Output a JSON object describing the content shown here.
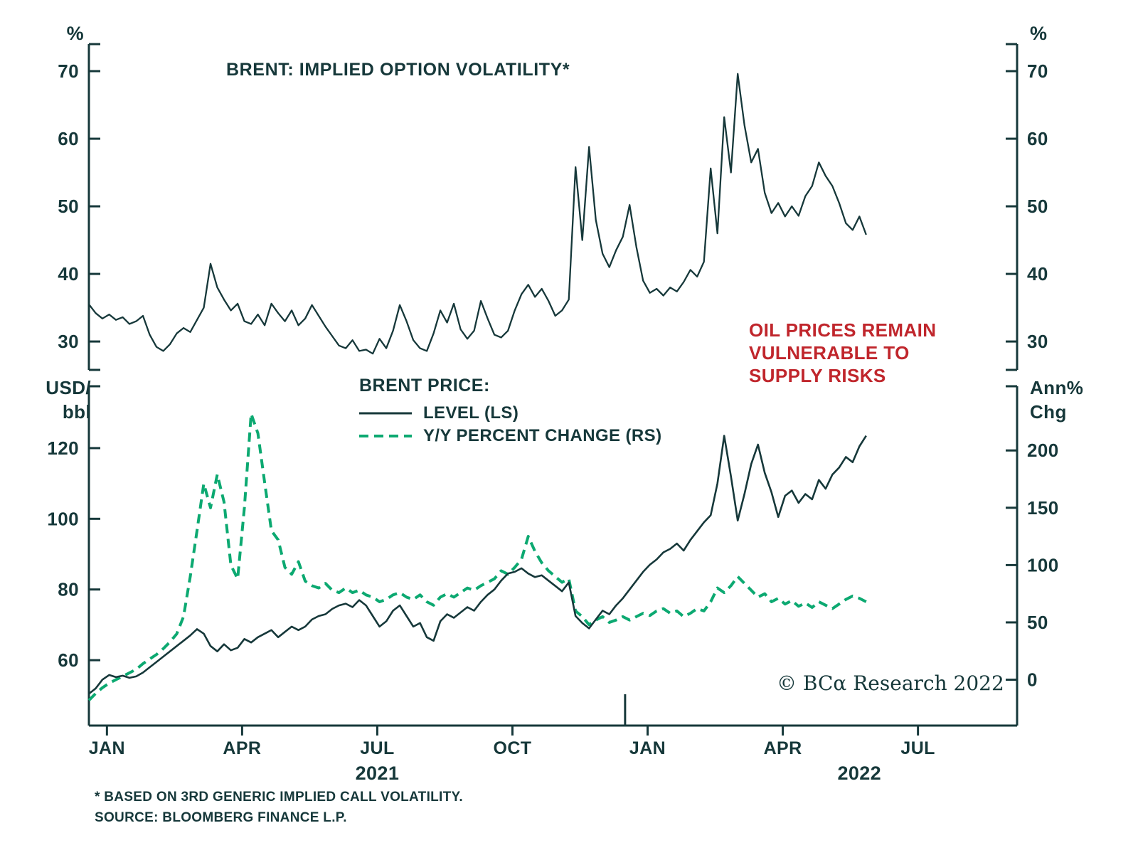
{
  "colors": {
    "dark": "#16383a",
    "green": "#0ca971",
    "red": "#c0262c",
    "background": "#ffffff"
  },
  "annotation": {
    "lines": [
      "OIL PRICES REMAIN",
      "VULNERABLE TO",
      "SUPPLY RISKS"
    ]
  },
  "copyright": "© BCα Research 2022",
  "footnotes": [
    "* BASED ON 3RD GENERIC IMPLIED CALL VOLATILITY.",
    "SOURCE: BLOOMBERG FINANCE L.P."
  ],
  "xaxis": {
    "xlim": [
      0.1,
      20.7
    ],
    "unit": "months from Jan 2021",
    "ticks": [
      {
        "pos": 0.5,
        "label": "JAN"
      },
      {
        "pos": 3.5,
        "label": "APR"
      },
      {
        "pos": 6.5,
        "label": "JUL"
      },
      {
        "pos": 9.5,
        "label": "OCT"
      },
      {
        "pos": 12.5,
        "label": "JAN"
      },
      {
        "pos": 15.5,
        "label": "APR"
      },
      {
        "pos": 18.5,
        "label": "JUL"
      }
    ],
    "years": [
      {
        "pos": 6.5,
        "label": "2021"
      },
      {
        "pos": 17.2,
        "label": "2022"
      }
    ],
    "year_divider_pos": 12
  },
  "chart_data": [
    {
      "panel": "top",
      "type": "line",
      "title": "BRENT: IMPLIED OPTION VOLATILITY*",
      "ylabel_left": "%",
      "ylabel_right": "%",
      "ylim": [
        25.8,
        74
      ],
      "yticks": [
        30,
        40,
        50,
        60,
        70
      ],
      "grid": false,
      "series": [
        {
          "name": "implied option volatility",
          "style": "solid",
          "x_start": 0.1,
          "x_step": 0.15,
          "values": [
            35.5,
            34.2,
            33.4,
            34,
            33.2,
            33.6,
            32.6,
            33,
            33.8,
            31,
            29.2,
            28.6,
            29.6,
            31.2,
            32,
            31.4,
            33.2,
            35,
            41.5,
            38,
            36.2,
            34.6,
            35.6,
            33,
            32.6,
            34,
            32.4,
            35.6,
            34.2,
            33,
            34.6,
            32.4,
            33.4,
            35.4,
            33.8,
            32.2,
            30.8,
            29.4,
            29,
            30.2,
            28.6,
            28.8,
            28.2,
            30.4,
            29,
            31.6,
            35.4,
            33,
            30.2,
            29,
            28.6,
            31.2,
            34.6,
            32.8,
            35.6,
            31.8,
            30.4,
            31.6,
            36,
            33.4,
            31,
            30.6,
            31.6,
            34.6,
            37,
            38.4,
            36.6,
            37.8,
            36,
            33.8,
            34.6,
            36.2,
            55.8,
            45,
            58.8,
            48,
            43,
            41,
            43.5,
            45.5,
            50.2,
            44,
            39,
            37.2,
            37.8,
            36.8,
            38,
            37.4,
            38.8,
            40.6,
            39.6,
            41.8,
            55.6,
            46,
            63.2,
            55,
            69.6,
            62,
            56.5,
            58.5,
            52,
            49,
            50.5,
            48.5,
            50,
            48.6,
            51.5,
            53,
            56.5,
            54.5,
            53,
            50.5,
            47.5,
            46.5,
            48.5,
            45.8
          ]
        }
      ]
    },
    {
      "panel": "bottom",
      "type": "line",
      "title": "BRENT PRICE:",
      "ylabel_left_lines": [
        "USD/",
        "bbl"
      ],
      "ylabel_right_lines": [
        "Ann%",
        "Chg"
      ],
      "ylim_left": [
        41.5,
        137.5
      ],
      "ylim_right": [
        -40,
        256
      ],
      "yticks_left": [
        60,
        80,
        100,
        120
      ],
      "yticks_right": [
        0,
        50,
        100,
        150,
        200
      ],
      "grid": false,
      "series": [
        {
          "name": "LEVEL (LS)",
          "axis": "left",
          "style": "solid",
          "x_start": 0.1,
          "x_step": 0.15,
          "values": [
            50.5,
            52,
            54.5,
            55.8,
            55.2,
            55.6,
            55,
            55.4,
            56.5,
            58,
            59.5,
            61,
            62.5,
            64,
            65.5,
            67,
            68.8,
            67.5,
            64,
            62.5,
            64.5,
            62.8,
            63.5,
            66,
            65,
            66.5,
            67.5,
            68.5,
            66.5,
            68,
            69.5,
            68.5,
            69.5,
            71.5,
            72.5,
            73,
            74.5,
            75.5,
            76,
            75,
            77,
            75.5,
            72.5,
            69.5,
            71,
            74,
            75.5,
            72.5,
            69.5,
            70.5,
            66.5,
            65.5,
            71,
            73,
            72,
            73.5,
            75,
            74,
            76.5,
            78.5,
            80,
            82.5,
            84.5,
            85,
            86,
            84.5,
            83.5,
            84,
            82.5,
            81,
            79.5,
            82,
            72.5,
            70.5,
            69,
            71.5,
            74,
            73,
            75.5,
            77.5,
            80,
            82.5,
            85,
            87,
            88.5,
            90.5,
            91.5,
            93,
            91,
            94,
            96.5,
            99,
            101,
            110,
            123.5,
            112,
            99.5,
            107,
            115.5,
            121,
            113,
            107.5,
            100.5,
            106.5,
            108,
            104.5,
            107,
            105.5,
            111,
            108.5,
            112.5,
            114.5,
            117.5,
            116,
            120.5,
            123.5
          ]
        },
        {
          "name": "Y/Y PERCENT CHANGE (RS)",
          "axis": "right",
          "style": "dashed",
          "x_start": 0.1,
          "x_step": 0.15,
          "values": [
            -18,
            -12,
            -7,
            -3,
            0,
            3,
            6,
            9,
            14,
            18,
            22,
            27,
            33,
            40,
            55,
            90,
            130,
            171,
            150,
            179,
            155,
            100,
            88,
            150,
            232,
            215,
            172,
            130,
            122,
            98,
            92,
            103,
            86,
            82,
            80,
            84,
            78,
            76,
            80,
            76,
            78,
            74,
            72,
            68,
            70,
            74,
            76,
            72,
            70,
            74,
            68,
            65,
            72,
            75,
            72,
            76,
            80,
            78,
            82,
            85,
            88,
            95,
            92,
            98,
            105,
            125,
            112,
            102,
            95,
            90,
            85,
            88,
            60,
            55,
            48,
            52,
            55,
            50,
            52,
            55,
            52,
            55,
            58,
            56,
            60,
            62,
            58,
            60,
            55,
            58,
            62,
            60,
            68,
            80,
            76,
            82,
            90,
            84,
            78,
            72,
            75,
            68,
            71,
            66,
            69,
            64,
            67,
            63,
            68,
            65,
            62,
            66,
            70,
            73,
            71,
            68
          ]
        }
      ]
    }
  ]
}
